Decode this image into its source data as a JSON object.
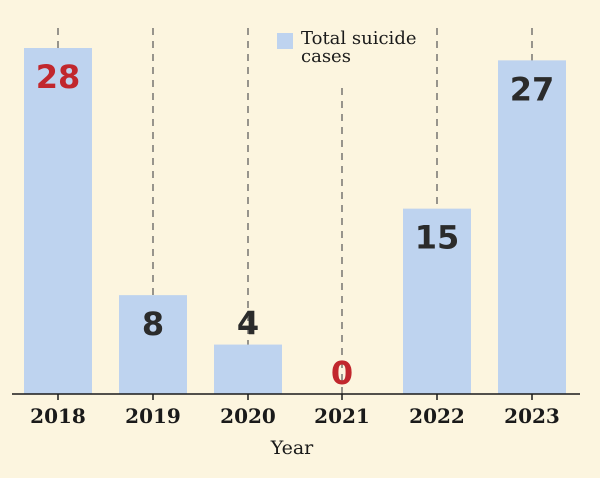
{
  "chart_data": {
    "type": "bar",
    "categories": [
      "2018",
      "2019",
      "2020",
      "2021",
      "2022",
      "2023"
    ],
    "series": [
      {
        "name": "Total suicide cases",
        "values": [
          28,
          8,
          4,
          0,
          15,
          27
        ]
      }
    ],
    "title": "",
    "xlabel": "Year",
    "ylabel": "",
    "ylim": [
      0,
      28
    ],
    "grid": "vertical dashed lines at each category",
    "legend_position": "top-center",
    "colors": {
      "bar": "#bed3ef",
      "label_default": "#2b2b2b",
      "label_highlight": "#c1272d",
      "axis": "#1a1a1a",
      "gridline": "#555555"
    },
    "highlighted_values": [
      28,
      0
    ]
  }
}
